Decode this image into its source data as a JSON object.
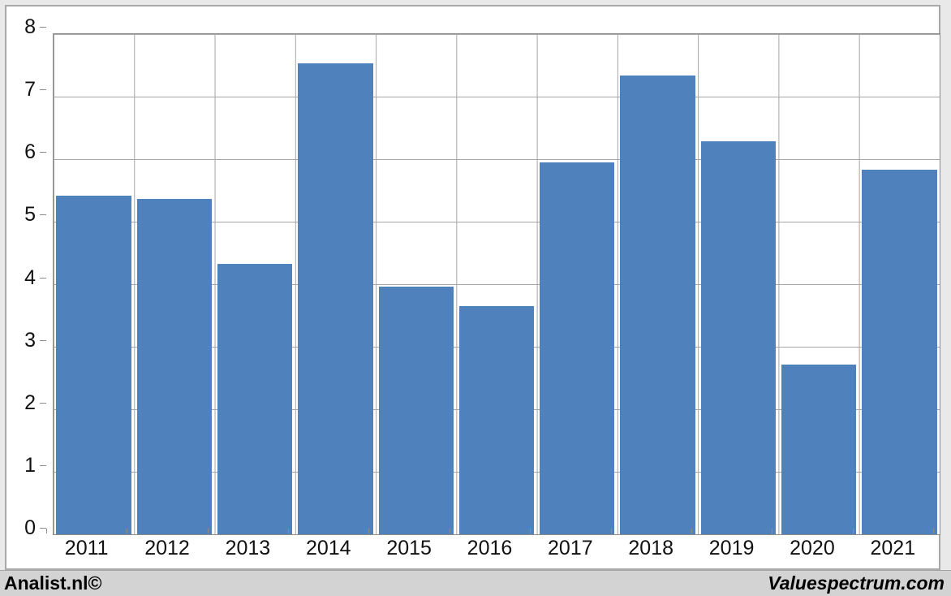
{
  "footer": {
    "left_text": "Analist.nl©",
    "right_text": "Valuespectrum.com"
  },
  "chart_data": {
    "type": "bar",
    "title": "",
    "xlabel": "",
    "ylabel": "",
    "categories": [
      "2011",
      "2012",
      "2013",
      "2014",
      "2015",
      "2016",
      "2017",
      "2018",
      "2019",
      "2020",
      "2021"
    ],
    "values": [
      5.41,
      5.37,
      4.32,
      7.53,
      3.96,
      3.65,
      5.95,
      7.34,
      6.28,
      2.72,
      5.83
    ],
    "ylim": [
      0,
      8
    ],
    "ytick_step": 1,
    "y_tick_labels": [
      "8",
      "7",
      "6",
      "5",
      "4",
      "3",
      "2",
      "1",
      "0"
    ],
    "grid": true,
    "legend_position": "none",
    "bar_color": "#4f81bd",
    "gridline_color": "#a6a6a6",
    "axis_border_color": "#8c8c8c",
    "background_color": "#ffffff",
    "frame_color": "#e9e9e9",
    "footer_color": "#d3d3d3"
  }
}
